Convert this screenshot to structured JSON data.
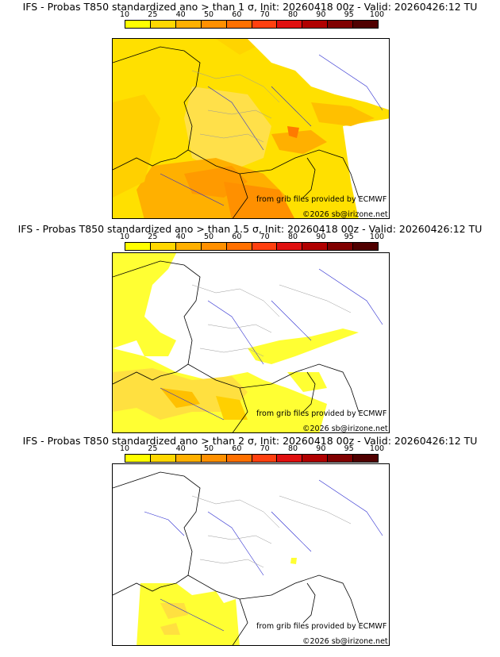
{
  "panels": [
    {
      "title": "IFS - Probas T850  standardized ano > than 1 σ, Init: 20260418 00z - Valid: 20260426:12 TU"
    },
    {
      "title": "IFS - Probas T850  standardized ano > than 1.5 σ, Init: 20260418 00z - Valid: 20260426:12 TU"
    },
    {
      "title": "IFS - Probas T850  standardized ano > than 2 σ, Init: 20260418 00z - Valid: 20260426:12 TU"
    }
  ],
  "colorbar": {
    "ticks": [
      "10",
      "25",
      "40",
      "50",
      "60",
      "70",
      "80",
      "90",
      "95",
      "100"
    ],
    "colors": [
      "#ffff00",
      "#ffd700",
      "#ffb000",
      "#ff9000",
      "#ff7000",
      "#ff4010",
      "#e01010",
      "#b00000",
      "#800000",
      "#500000"
    ]
  },
  "credits": {
    "source": "from grib files provided by ECMWF",
    "copyright": "©2026 sb@irizone.net"
  }
}
